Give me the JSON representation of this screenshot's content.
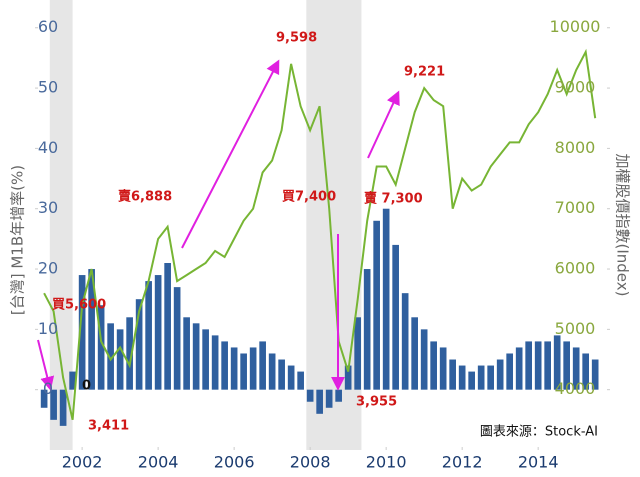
{
  "chart_data": {
    "type": "bar",
    "y_label": "[台灣] M1B年增率(%)",
    "y2_label": "加權股價指數(Index)",
    "source": "圖表來源：Stock-AI",
    "annotations": [
      "買5,600",
      "3,411",
      "0",
      "賣6,888",
      "9,598",
      "買7,400",
      "3,955",
      "賣 7,300",
      "9,221"
    ],
    "x": [
      2001.0,
      2001.25,
      2001.5,
      2001.75,
      2002.0,
      2002.25,
      2002.5,
      2002.75,
      2003.0,
      2003.25,
      2003.5,
      2003.75,
      2004.0,
      2004.25,
      2004.5,
      2004.75,
      2005.0,
      2005.25,
      2005.5,
      2005.75,
      2006.0,
      2006.25,
      2006.5,
      2006.75,
      2007.0,
      2007.25,
      2007.5,
      2007.75,
      2008.0,
      2008.25,
      2008.5,
      2008.75,
      2009.0,
      2009.25,
      2009.5,
      2009.75,
      2010.0,
      2010.25,
      2010.5,
      2010.75,
      2011.0,
      2011.25,
      2011.5,
      2011.75,
      2012.0,
      2012.25,
      2012.5,
      2012.75,
      2013.0,
      2013.25,
      2013.5,
      2013.75,
      2014.0,
      2014.25,
      2014.5,
      2014.75,
      2015.0,
      2015.25,
      2015.5
    ],
    "series": [
      {
        "type": "bar",
        "axis": "y",
        "color": "#2f5f9e",
        "values": [
          -3,
          -5,
          -6,
          3,
          19,
          20,
          14,
          11,
          10,
          12,
          15,
          18,
          19,
          21,
          17,
          12,
          11,
          10,
          9,
          8,
          7,
          6,
          7,
          8,
          6,
          5,
          4,
          3,
          -2,
          -4,
          -3,
          -2,
          4,
          12,
          20,
          28,
          30,
          24,
          16,
          12,
          10,
          8,
          7,
          5,
          4,
          3,
          4,
          4,
          5,
          6,
          7,
          8,
          8,
          8,
          9,
          8,
          7,
          6,
          5
        ]
      },
      {
        "type": "line",
        "axis": "y2",
        "color": "#77b534",
        "values": [
          5600,
          5300,
          4200,
          3500,
          5400,
          6000,
          4800,
          4500,
          4700,
          4400,
          5300,
          5800,
          6500,
          6700,
          5800,
          5900,
          6000,
          6100,
          6300,
          6200,
          6500,
          6800,
          7000,
          7600,
          7800,
          8300,
          9400,
          8700,
          8300,
          8700,
          7000,
          4800,
          4300,
          5500,
          6800,
          7700,
          7700,
          7400,
          8000,
          8600,
          9000,
          8800,
          8700,
          7000,
          7500,
          7300,
          7400,
          7700,
          7900,
          8100,
          8100,
          8400,
          8600,
          8900,
          9300,
          8900,
          9300,
          9600,
          8500
        ]
      }
    ],
    "shaded": [
      [
        2001.15,
        2001.75
      ],
      [
        2007.9,
        2009.35
      ]
    ],
    "xlim": [
      2000.76,
      2015.89
    ],
    "xticks": [
      2002,
      2004,
      2006,
      2008,
      2010,
      2012,
      2014
    ],
    "ylim": [
      -10,
      64.6
    ],
    "yticks": [
      0,
      10,
      20,
      30,
      40,
      50,
      60
    ],
    "y2lim": [
      3000,
      10460
    ],
    "y2ticks": [
      4000,
      5000,
      6000,
      7000,
      8000,
      9000,
      10000
    ]
  }
}
